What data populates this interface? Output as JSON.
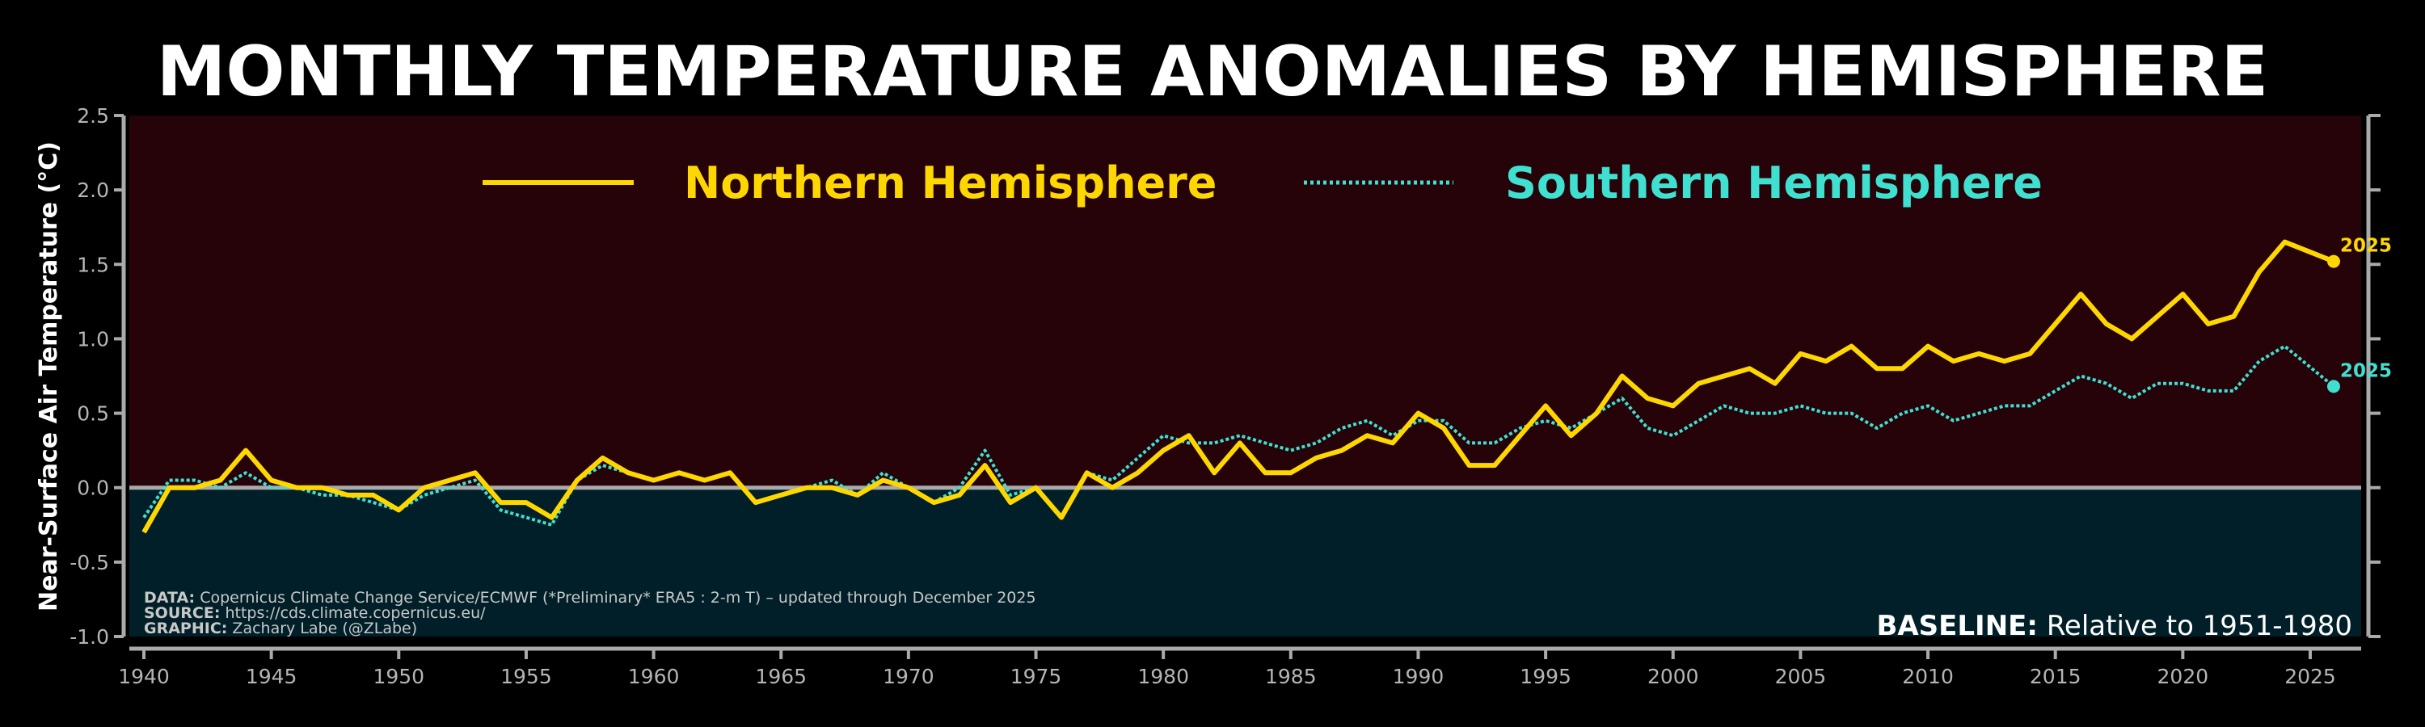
{
  "chart_data": {
    "type": "line",
    "title": "MONTHLY TEMPERATURE ANOMALIES BY HEMISPHERE",
    "ylabel": "Near-Surface Air Temperature (°C)",
    "xlabel": "",
    "ylim": [
      -1.0,
      2.5
    ],
    "xlim": [
      1940,
      2026
    ],
    "yticks": [
      "-1.0",
      "-0.5",
      "0.0",
      "0.5",
      "1.0",
      "1.5",
      "2.0",
      "2.5"
    ],
    "xticks": [
      "1940",
      "1945",
      "1950",
      "1955",
      "1960",
      "1965",
      "1970",
      "1975",
      "1980",
      "1985",
      "1990",
      "1995",
      "2000",
      "2005",
      "2010",
      "2015",
      "2020",
      "2025"
    ],
    "legend_position": "top",
    "grid": false,
    "x": [
      1940,
      1941,
      1942,
      1943,
      1944,
      1945,
      1946,
      1947,
      1948,
      1949,
      1950,
      1951,
      1952,
      1953,
      1954,
      1955,
      1956,
      1957,
      1958,
      1959,
      1960,
      1961,
      1962,
      1963,
      1964,
      1965,
      1966,
      1967,
      1968,
      1969,
      1970,
      1971,
      1972,
      1973,
      1974,
      1975,
      1976,
      1977,
      1978,
      1979,
      1980,
      1981,
      1982,
      1983,
      1984,
      1985,
      1986,
      1987,
      1988,
      1989,
      1990,
      1991,
      1992,
      1993,
      1994,
      1995,
      1996,
      1997,
      1998,
      1999,
      2000,
      2001,
      2002,
      2003,
      2004,
      2005,
      2006,
      2007,
      2008,
      2009,
      2010,
      2011,
      2012,
      2013,
      2014,
      2015,
      2016,
      2017,
      2018,
      2019,
      2020,
      2021,
      2022,
      2023,
      2024,
      2025.92
    ],
    "series": [
      {
        "name": "Northern Hemisphere",
        "color": "#FFD700",
        "style": "solid",
        "values": [
          -0.3,
          0.0,
          0.0,
          0.05,
          0.25,
          0.05,
          0.0,
          0.0,
          -0.05,
          -0.05,
          -0.15,
          0.0,
          0.05,
          0.1,
          -0.1,
          -0.1,
          -0.2,
          0.05,
          0.2,
          0.1,
          0.05,
          0.1,
          0.05,
          0.1,
          -0.1,
          -0.05,
          0.0,
          0.0,
          -0.05,
          0.05,
          0.0,
          -0.1,
          -0.05,
          0.15,
          -0.1,
          0.0,
          -0.2,
          0.1,
          0.0,
          0.1,
          0.25,
          0.35,
          0.1,
          0.3,
          0.1,
          0.1,
          0.2,
          0.25,
          0.35,
          0.3,
          0.5,
          0.4,
          0.15,
          0.15,
          0.35,
          0.55,
          0.35,
          0.5,
          0.75,
          0.6,
          0.55,
          0.7,
          0.75,
          0.8,
          0.7,
          0.9,
          0.85,
          0.95,
          0.8,
          0.8,
          0.95,
          0.85,
          0.9,
          0.85,
          0.9,
          1.1,
          1.3,
          1.1,
          1.0,
          1.15,
          1.3,
          1.1,
          1.15,
          1.45,
          1.65,
          1.52
        ],
        "end_label": "2025"
      },
      {
        "name": "Southern Hemisphere",
        "color": "#40E0D0",
        "style": "dotted",
        "values": [
          -0.2,
          0.05,
          0.05,
          0.0,
          0.1,
          0.0,
          0.0,
          -0.05,
          -0.05,
          -0.1,
          -0.15,
          -0.05,
          0.0,
          0.05,
          -0.15,
          -0.2,
          -0.25,
          0.05,
          0.15,
          0.1,
          0.05,
          0.1,
          0.05,
          0.1,
          -0.1,
          -0.05,
          0.0,
          0.05,
          -0.05,
          0.1,
          0.0,
          -0.1,
          0.0,
          0.25,
          -0.05,
          0.0,
          -0.2,
          0.1,
          0.05,
          0.2,
          0.35,
          0.3,
          0.3,
          0.35,
          0.3,
          0.25,
          0.3,
          0.4,
          0.45,
          0.35,
          0.45,
          0.45,
          0.3,
          0.3,
          0.4,
          0.45,
          0.4,
          0.5,
          0.6,
          0.4,
          0.35,
          0.45,
          0.55,
          0.5,
          0.5,
          0.55,
          0.5,
          0.5,
          0.4,
          0.5,
          0.55,
          0.45,
          0.5,
          0.55,
          0.55,
          0.65,
          0.75,
          0.7,
          0.6,
          0.7,
          0.7,
          0.65,
          0.65,
          0.85,
          0.95,
          0.68
        ],
        "end_label": "2025"
      }
    ],
    "colors": {
      "above_zero_bg": "#250309",
      "below_zero_bg": "#001F28",
      "zero_line": "#aaaaaa",
      "axis": "#aaaaaa"
    }
  },
  "notes": {
    "data_label": "DATA:",
    "data_text": "Copernicus Climate Change Service/ECMWF (*Preliminary* ERA5 : 2-m T) – updated through December 2025",
    "source_label": "SOURCE:",
    "source_text": "https://cds.climate.copernicus.eu/",
    "graphic_label": "GRAPHIC:",
    "graphic_text": "Zachary Labe (@ZLabe)",
    "baseline_label": "BASELINE:",
    "baseline_text": "Relative to 1951-1980"
  }
}
